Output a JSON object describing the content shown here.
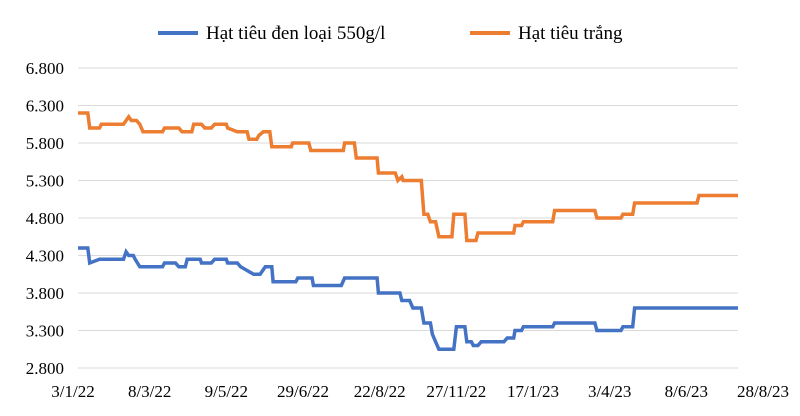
{
  "chart_data": {
    "type": "line",
    "title": "",
    "xlabel": "",
    "ylabel": "",
    "ylim": [
      2800,
      6800
    ],
    "y_ticks": [
      "2.800",
      "3.300",
      "3.800",
      "4.300",
      "4.800",
      "5.300",
      "5.800",
      "6.300",
      "6.800"
    ],
    "y_tick_values": [
      2800,
      3300,
      3800,
      4300,
      4800,
      5300,
      5800,
      6300,
      6800
    ],
    "x_tick_labels": [
      "3/1/22",
      "8/3/22",
      "9/5/22",
      "29/6/22",
      "22/8/22",
      "27/11/22",
      "17/1/23",
      "3/4/23",
      "8/6/23",
      "28/8/23"
    ],
    "grid": true,
    "legend_position": "top",
    "series": [
      {
        "name": "Hạt tiêu đen loại 550g/l",
        "color": "#4472c4",
        "points": [
          [
            0,
            4400
          ],
          [
            0.15,
            4400
          ],
          [
            0.18,
            4200
          ],
          [
            0.33,
            4250
          ],
          [
            0.7,
            4250
          ],
          [
            0.74,
            4350
          ],
          [
            0.78,
            4300
          ],
          [
            0.85,
            4300
          ],
          [
            0.88,
            4250
          ],
          [
            0.95,
            4150
          ],
          [
            1.3,
            4150
          ],
          [
            1.33,
            4200
          ],
          [
            1.5,
            4200
          ],
          [
            1.55,
            4150
          ],
          [
            1.65,
            4150
          ],
          [
            1.68,
            4250
          ],
          [
            1.88,
            4250
          ],
          [
            1.9,
            4200
          ],
          [
            2.05,
            4200
          ],
          [
            2.1,
            4250
          ],
          [
            2.28,
            4250
          ],
          [
            2.3,
            4200
          ],
          [
            2.45,
            4200
          ],
          [
            2.5,
            4150
          ],
          [
            2.6,
            4100
          ],
          [
            2.7,
            4050
          ],
          [
            2.8,
            4050
          ],
          [
            2.84,
            4100
          ],
          [
            2.88,
            4150
          ],
          [
            2.98,
            4150
          ],
          [
            3.0,
            3950
          ],
          [
            3.35,
            3950
          ],
          [
            3.38,
            4000
          ],
          [
            3.6,
            4000
          ],
          [
            3.62,
            3900
          ],
          [
            4.05,
            3900
          ],
          [
            4.1,
            4000
          ],
          [
            4.6,
            4000
          ],
          [
            4.62,
            3800
          ],
          [
            4.95,
            3800
          ],
          [
            4.98,
            3700
          ],
          [
            5.1,
            3700
          ],
          [
            5.15,
            3600
          ],
          [
            5.28,
            3600
          ],
          [
            5.32,
            3400
          ],
          [
            5.42,
            3400
          ],
          [
            5.45,
            3250
          ],
          [
            5.5,
            3150
          ],
          [
            5.55,
            3050
          ],
          [
            5.78,
            3050
          ],
          [
            5.82,
            3350
          ],
          [
            5.95,
            3350
          ],
          [
            5.98,
            3150
          ],
          [
            6.05,
            3150
          ],
          [
            6.08,
            3100
          ],
          [
            6.15,
            3100
          ],
          [
            6.2,
            3150
          ],
          [
            6.55,
            3150
          ],
          [
            6.6,
            3200
          ],
          [
            6.7,
            3200
          ],
          [
            6.72,
            3300
          ],
          [
            6.82,
            3300
          ],
          [
            6.85,
            3350
          ],
          [
            7.3,
            3350
          ],
          [
            7.33,
            3400
          ],
          [
            7.95,
            3400
          ],
          [
            7.98,
            3300
          ],
          [
            8.35,
            3300
          ],
          [
            8.38,
            3350
          ],
          [
            8.53,
            3350
          ],
          [
            8.56,
            3600
          ],
          [
            10.15,
            3600
          ]
        ]
      },
      {
        "name": "Hạt tiêu trắng",
        "color": "#ed7d31",
        "points": [
          [
            0,
            6200
          ],
          [
            0.15,
            6200
          ],
          [
            0.18,
            6000
          ],
          [
            0.33,
            6000
          ],
          [
            0.36,
            6050
          ],
          [
            0.7,
            6050
          ],
          [
            0.74,
            6100
          ],
          [
            0.78,
            6150
          ],
          [
            0.82,
            6100
          ],
          [
            0.9,
            6100
          ],
          [
            0.95,
            6050
          ],
          [
            1.0,
            5950
          ],
          [
            1.3,
            5950
          ],
          [
            1.33,
            6000
          ],
          [
            1.55,
            6000
          ],
          [
            1.6,
            5950
          ],
          [
            1.75,
            5950
          ],
          [
            1.78,
            6050
          ],
          [
            1.9,
            6050
          ],
          [
            1.95,
            6000
          ],
          [
            2.05,
            6000
          ],
          [
            2.1,
            6050
          ],
          [
            2.28,
            6050
          ],
          [
            2.3,
            6000
          ],
          [
            2.45,
            5950
          ],
          [
            2.6,
            5950
          ],
          [
            2.63,
            5850
          ],
          [
            2.75,
            5850
          ],
          [
            2.78,
            5900
          ],
          [
            2.85,
            5950
          ],
          [
            2.95,
            5950
          ],
          [
            2.98,
            5750
          ],
          [
            3.28,
            5750
          ],
          [
            3.3,
            5800
          ],
          [
            3.55,
            5800
          ],
          [
            3.58,
            5700
          ],
          [
            4.08,
            5700
          ],
          [
            4.1,
            5800
          ],
          [
            4.25,
            5800
          ],
          [
            4.28,
            5600
          ],
          [
            4.6,
            5600
          ],
          [
            4.62,
            5400
          ],
          [
            4.88,
            5400
          ],
          [
            4.92,
            5300
          ],
          [
            4.98,
            5350
          ],
          [
            5.0,
            5300
          ],
          [
            5.28,
            5300
          ],
          [
            5.32,
            4850
          ],
          [
            5.38,
            4850
          ],
          [
            5.42,
            4750
          ],
          [
            5.5,
            4750
          ],
          [
            5.55,
            4550
          ],
          [
            5.75,
            4550
          ],
          [
            5.78,
            4850
          ],
          [
            5.95,
            4850
          ],
          [
            5.98,
            4500
          ],
          [
            6.12,
            4500
          ],
          [
            6.15,
            4600
          ],
          [
            6.7,
            4600
          ],
          [
            6.72,
            4700
          ],
          [
            6.82,
            4700
          ],
          [
            6.85,
            4750
          ],
          [
            7.3,
            4750
          ],
          [
            7.33,
            4900
          ],
          [
            7.95,
            4900
          ],
          [
            7.98,
            4800
          ],
          [
            8.35,
            4800
          ],
          [
            8.38,
            4850
          ],
          [
            8.53,
            4850
          ],
          [
            8.56,
            5000
          ],
          [
            9.52,
            5000
          ],
          [
            9.55,
            5100
          ],
          [
            10.15,
            5100
          ]
        ]
      }
    ]
  }
}
